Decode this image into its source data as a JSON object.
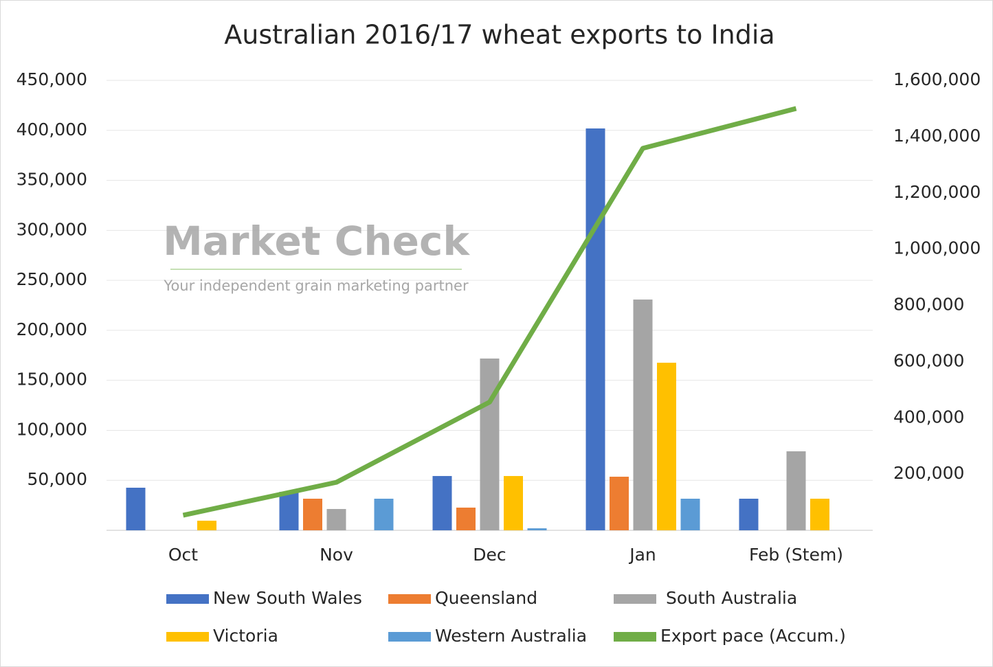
{
  "chart_data": {
    "type": "bar_line",
    "title": "Australian 2016/17 wheat exports to India",
    "watermark": {
      "brand": "Market Check",
      "tagline": "Your independent grain marketing partner"
    },
    "categories": [
      "Oct",
      "Nov",
      "Dec",
      "Jan",
      "Feb (Stem)"
    ],
    "series": [
      {
        "name": "New South Wales",
        "color": "#4472c4",
        "values": [
          42600,
          38500,
          54300,
          401900,
          31600
        ]
      },
      {
        "name": "Queensland",
        "color": "#ed7d31",
        "values": [
          null,
          31600,
          22700,
          53600,
          null
        ]
      },
      {
        "name": "South Australia",
        "color": "#a5a5a5",
        "values": [
          null,
          21300,
          171800,
          230800,
          79000
        ]
      },
      {
        "name": "Victoria",
        "color": "#ffc000",
        "values": [
          9600,
          null,
          54300,
          167600,
          31600
        ]
      },
      {
        "name": "Western Australia",
        "color": "#5b9bd5",
        "values": [
          null,
          31600,
          2000,
          31600,
          null
        ]
      },
      {
        "name": "Export pace (Accum.)",
        "color": "#70ad47",
        "type": "line",
        "axis": "y2",
        "values": [
          53700,
          170700,
          456000,
          1358500,
          1500000
        ]
      }
    ],
    "ylim": [
      0,
      450000
    ],
    "yticks": [
      {
        "value": 50000,
        "label": "50,000"
      },
      {
        "value": 100000,
        "label": "100,000"
      },
      {
        "value": 150000,
        "label": "150,000"
      },
      {
        "value": 200000,
        "label": "200,000"
      },
      {
        "value": 250000,
        "label": "250,000"
      },
      {
        "value": 300000,
        "label": "300,000"
      },
      {
        "value": 350000,
        "label": "350,000"
      },
      {
        "value": 400000,
        "label": "400,000"
      },
      {
        "value": 450000,
        "label": "450,000"
      }
    ],
    "y2lim": [
      0,
      1600000
    ],
    "y2ticks": [
      {
        "value": 200000,
        "label": "200,000"
      },
      {
        "value": 400000,
        "label": "400,000"
      },
      {
        "value": 600000,
        "label": "600,000"
      },
      {
        "value": 800000,
        "label": "800,000"
      },
      {
        "value": 1000000,
        "label": "1,000,000"
      },
      {
        "value": 1200000,
        "label": "1,200,000"
      },
      {
        "value": 1400000,
        "label": "1,400,000"
      },
      {
        "value": 1600000,
        "label": "1,600,000"
      }
    ],
    "grid": true
  }
}
